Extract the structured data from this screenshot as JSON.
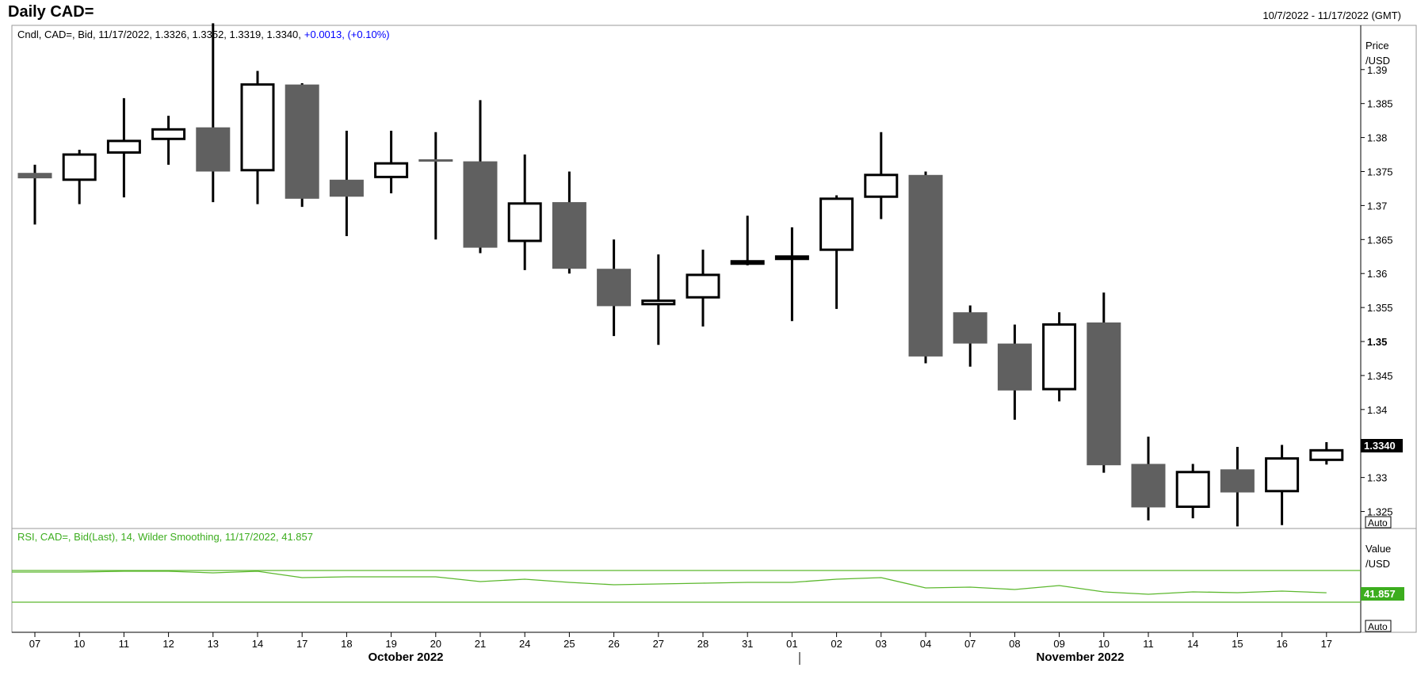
{
  "header": {
    "title": "Daily CAD=",
    "date_range": "10/7/2022 - 11/17/2022 (GMT)"
  },
  "price_panel": {
    "info_prefix": "Cndl, CAD=, Bid, 11/17/2022, 1.3326, 1.3352, 1.3319, 1.3340,",
    "info_change": "+0.0013, (+0.10%)",
    "axis_title_1": "Price",
    "axis_title_2": "/USD",
    "last_label": "1.3340",
    "auto_label": "Auto"
  },
  "rsi_panel": {
    "info": "RSI, CAD=, Bid(Last),  14, Wilder Smoothing, 11/17/2022, 41.857",
    "axis_title_1": "Value",
    "axis_title_2": "/USD",
    "last_label": "41.857",
    "auto_label": "Auto"
  },
  "x_axis": {
    "month_labels": [
      "October 2022",
      "November 2022"
    ]
  },
  "colors": {
    "bear_fill": "#606060",
    "bull_fill": "#ffffff",
    "rsi_line": "#5cb82e",
    "info_blue": "#0000ff",
    "last_label_bg": "#000000",
    "rsi_label_bg": "#3cad1e"
  },
  "chart_data": [
    {
      "type": "candlestick",
      "title": "Daily CAD=",
      "ylabel": "Price /USD",
      "ylim": [
        1.3225,
        1.3965
      ],
      "yticks": [
        1.325,
        1.33,
        1.335,
        1.34,
        1.345,
        1.35,
        1.355,
        1.36,
        1.365,
        1.37,
        1.375,
        1.38,
        1.385,
        1.39
      ],
      "ytick_labels": [
        "1.325",
        "1.33",
        "1.335",
        "1.34",
        "1.345",
        "1.35",
        "1.355",
        "1.36",
        "1.365",
        "1.37",
        "1.375",
        "1.38",
        "1.385",
        "1.39"
      ],
      "x": [
        "07",
        "10",
        "11",
        "12",
        "13",
        "14",
        "17",
        "18",
        "19",
        "20",
        "21",
        "24",
        "25",
        "26",
        "27",
        "28",
        "31",
        "01",
        "02",
        "03",
        "04",
        "07",
        "08",
        "09",
        "10",
        "11",
        "14",
        "15",
        "16",
        "17"
      ],
      "open": [
        1.3748,
        1.3738,
        1.3778,
        1.3798,
        1.3815,
        1.3752,
        1.3878,
        1.3738,
        1.3742,
        1.3768,
        1.3765,
        1.3648,
        1.3705,
        1.3607,
        1.3555,
        1.3565,
        1.3618,
        1.3625,
        1.3635,
        1.3713,
        1.3745,
        1.3543,
        1.3497,
        1.343,
        1.3528,
        1.332,
        1.3257,
        1.3312,
        1.328,
        1.3326
      ],
      "high": [
        1.376,
        1.3782,
        1.3858,
        1.3832,
        1.3968,
        1.3898,
        1.388,
        1.381,
        1.381,
        1.3808,
        1.3855,
        1.3775,
        1.375,
        1.365,
        1.3628,
        1.3635,
        1.3685,
        1.3668,
        1.3715,
        1.3808,
        1.375,
        1.3553,
        1.3525,
        1.3543,
        1.3572,
        1.336,
        1.332,
        1.3345,
        1.3348,
        1.3352
      ],
      "low": [
        1.3672,
        1.3702,
        1.3712,
        1.376,
        1.3705,
        1.3702,
        1.3698,
        1.3655,
        1.3718,
        1.365,
        1.363,
        1.3605,
        1.36,
        1.3508,
        1.3495,
        1.3522,
        1.3612,
        1.353,
        1.3548,
        1.368,
        1.3468,
        1.3463,
        1.3385,
        1.3412,
        1.3307,
        1.3237,
        1.324,
        1.3228,
        1.323,
        1.3319
      ],
      "close": [
        1.374,
        1.3775,
        1.3795,
        1.3812,
        1.375,
        1.3878,
        1.371,
        1.3713,
        1.3762,
        1.3765,
        1.3638,
        1.3703,
        1.3607,
        1.3552,
        1.356,
        1.3598,
        1.3618,
        1.3625,
        1.371,
        1.3745,
        1.3478,
        1.3497,
        1.3428,
        1.3525,
        1.3318,
        1.3256,
        1.3308,
        1.3278,
        1.3328,
        1.334
      ]
    },
    {
      "type": "line",
      "name": "RSI, CAD=, Bid(Last),  14, Wilder Smoothing",
      "ylabel": "Value /USD",
      "ylim": [
        0,
        100
      ],
      "reference_lines": [
        70,
        30
      ],
      "x": [
        "07",
        "10",
        "11",
        "12",
        "13",
        "14",
        "17",
        "18",
        "19",
        "20",
        "21",
        "24",
        "25",
        "26",
        "27",
        "28",
        "31",
        "01",
        "02",
        "03",
        "04",
        "07",
        "08",
        "09",
        "10",
        "11",
        "14",
        "15",
        "16",
        "17"
      ],
      "values": [
        68,
        68,
        69,
        69,
        67,
        69,
        61,
        62,
        62,
        62,
        56,
        59,
        55,
        52,
        53,
        54,
        55,
        55,
        59,
        61,
        48,
        49,
        46,
        51,
        43,
        40,
        43,
        42,
        44,
        41.857
      ]
    }
  ]
}
